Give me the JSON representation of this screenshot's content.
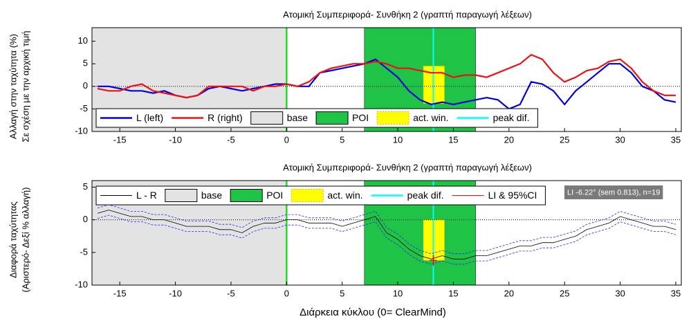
{
  "chart_data": [
    {
      "type": "line",
      "title": "Ατομική Συμπεριφορά- Συνθήκη 2 (γραπτή παραγωγή λέξεων)",
      "y_label": [
        "Αλλαγή στην ταχύτητα (%)",
        "Σε σχέση με την αρχική τιμή"
      ],
      "x": [
        -17,
        -16,
        -15,
        -14,
        -13,
        -12,
        -11,
        -10,
        -9,
        -8,
        -7,
        -6,
        -5,
        -4,
        -3,
        -2,
        -1,
        0,
        1,
        2,
        3,
        4,
        5,
        6,
        7,
        8,
        9,
        10,
        11,
        12,
        13,
        14,
        15,
        16,
        17,
        18,
        19,
        20,
        21,
        22,
        23,
        24,
        25,
        26,
        27,
        28,
        29,
        30,
        31,
        32,
        33,
        34,
        35
      ],
      "series": [
        {
          "name": "L (left)",
          "color": "#0000dd",
          "values": [
            0,
            0,
            -0.5,
            -1,
            -1,
            -1.5,
            -1,
            -2,
            -2.5,
            -2,
            -0.5,
            0,
            -0.5,
            -1,
            -0.5,
            0,
            0.5,
            0.5,
            0,
            0,
            3,
            3.5,
            4,
            4.5,
            5,
            6,
            4,
            2,
            -1,
            -3,
            -4,
            -3.5,
            -4,
            -3.5,
            -3,
            -2.5,
            -3,
            -5,
            -4,
            1,
            0.5,
            -1,
            -4,
            -1,
            1,
            3,
            5,
            5,
            3,
            0,
            -1,
            -3,
            -3.5
          ]
        },
        {
          "name": "R (right)",
          "color": "#ee1111",
          "values": [
            -0.5,
            -1,
            -1,
            0,
            0.5,
            -1,
            -1.5,
            -2,
            -2.5,
            -2,
            0,
            0,
            0,
            0,
            -1,
            0,
            0,
            0.5,
            0,
            1,
            3,
            4,
            4.5,
            5,
            5,
            5.5,
            5,
            4,
            4,
            3.5,
            3,
            3,
            2,
            2.5,
            2.5,
            2,
            3,
            4,
            5,
            7,
            6,
            3,
            1,
            2,
            3.5,
            4,
            5.5,
            6,
            4,
            1,
            -1,
            -2,
            -2
          ]
        }
      ],
      "shaded": [
        {
          "name": "base",
          "color": "#e3e3e3",
          "xlim": [
            -17.5,
            0
          ]
        },
        {
          "name": "POI",
          "color": "#1fc447",
          "xlim": [
            7,
            17
          ]
        },
        {
          "name": "act. win.",
          "color": "#ffff00",
          "xlim": [
            12.3,
            14.2
          ],
          "ylim": [
            -3.8,
            4.5
          ]
        }
      ],
      "onset_line": {
        "x": 0,
        "color": "#22dd22"
      },
      "vlines": [
        {
          "name": "peak dif.",
          "color": "#00ffff",
          "x": 13.2
        }
      ],
      "xlim": [
        -17.5,
        35.5
      ],
      "ylim": [
        -10,
        13
      ],
      "xticks": [
        -15,
        -10,
        -5,
        0,
        5,
        10,
        15,
        20,
        25,
        30,
        35
      ],
      "yticks": [
        -10,
        -5,
        0,
        5,
        10
      ]
    },
    {
      "type": "line",
      "title": "Ατομική Συμπεριφορά- Συνθήκη 2 (γραπτή παραγωγή λέξεων)",
      "y_label": [
        "Διαφορά ταχύτητας",
        "(Αριστερό- Δεξί % αλλαγή)"
      ],
      "x_label": "Διάρκεια κύκλου (0= ClearMind)",
      "x": [
        -17,
        -16,
        -15,
        -14,
        -13,
        -12,
        -11,
        -10,
        -9,
        -8,
        -7,
        -6,
        -5,
        -4,
        -3,
        -2,
        -1,
        0,
        1,
        2,
        3,
        4,
        5,
        6,
        7,
        8,
        9,
        10,
        11,
        12,
        13,
        14,
        15,
        16,
        17,
        18,
        19,
        20,
        21,
        22,
        23,
        24,
        25,
        26,
        27,
        28,
        29,
        30,
        31,
        32,
        33,
        34,
        35
      ],
      "series": [
        {
          "name": "L - R",
          "color": "#000000",
          "values": [
            1,
            1.5,
            1,
            0.5,
            0.5,
            0,
            0,
            -0.5,
            -1,
            -1,
            -1,
            -1.5,
            -1.5,
            -2,
            -1,
            -0.5,
            -0.5,
            0,
            0,
            -0.5,
            -0.5,
            -0.5,
            -1,
            -0.5,
            0,
            0.5,
            -2,
            -3,
            -4.5,
            -5.5,
            -6,
            -5.5,
            -6,
            -6,
            -5.5,
            -5.5,
            -5,
            -4.5,
            -4,
            -4,
            -3.5,
            -3.5,
            -3,
            -2.5,
            -1.5,
            -1,
            -0.5,
            0.5,
            0,
            -0.5,
            -1,
            -1,
            -1.5
          ]
        },
        {
          "color": "#2222ff",
          "dashed": true,
          "values": [
            1.8,
            2.3,
            1.8,
            1.3,
            1.3,
            0.8,
            0.8,
            0.3,
            -0.2,
            -0.2,
            -0.2,
            -0.7,
            -0.7,
            -1.2,
            -0.2,
            0.3,
            0.3,
            0.8,
            0.8,
            0.3,
            0.3,
            0.3,
            -0.2,
            0.3,
            0.8,
            1.3,
            -1.2,
            -2.2,
            -3.7,
            -4.7,
            -5.2,
            -4.7,
            -5.2,
            -5.2,
            -4.7,
            -4.7,
            -4.2,
            -3.7,
            -3.2,
            -3.2,
            -2.7,
            -2.7,
            -2.2,
            -1.7,
            -0.7,
            -0.2,
            0.3,
            1.3,
            0.8,
            0.3,
            -0.2,
            -0.2,
            -0.7
          ]
        },
        {
          "color": "#2222ff",
          "dashed": true,
          "values": [
            0.2,
            0.7,
            0.2,
            -0.3,
            -0.3,
            -0.8,
            -0.8,
            -1.3,
            -1.8,
            -1.8,
            -1.8,
            -2.3,
            -2.3,
            -2.8,
            -1.8,
            -1.3,
            -1.3,
            -0.8,
            -0.8,
            -1.3,
            -1.3,
            -1.3,
            -1.8,
            -1.3,
            -0.8,
            -0.3,
            -2.8,
            -3.8,
            -5.3,
            -6.3,
            -6.8,
            -6.3,
            -6.8,
            -6.8,
            -6.3,
            -6.3,
            -5.8,
            -5.3,
            -4.8,
            -4.8,
            -4.3,
            -4.3,
            -3.8,
            -3.3,
            -2.3,
            -1.8,
            -1.3,
            -0.3,
            -0.8,
            -1.3,
            -1.8,
            -1.8,
            -2.3
          ]
        }
      ],
      "shaded": [
        {
          "name": "base",
          "color": "#e3e3e3",
          "xlim": [
            -17.5,
            0
          ]
        },
        {
          "name": "POI",
          "color": "#1fc447",
          "xlim": [
            7,
            17
          ]
        },
        {
          "name": "act. win.",
          "color": "#ffff00",
          "xlim": [
            12.3,
            14.2
          ],
          "ylim": [
            -6.22,
            0
          ]
        }
      ],
      "onset_line": {
        "x": 0,
        "color": "#22dd22"
      },
      "vlines": [
        {
          "name": "peak dif.",
          "color": "#00ffff",
          "x": 13.2
        }
      ],
      "li": {
        "name": "LI & 95%CI",
        "color": "#ff0000",
        "x": 13.2,
        "value": -6.22,
        "ci": [
          -7.0,
          -5.4
        ]
      },
      "annotation": "LI -6.22° (sem 0.813), n=19",
      "xlim": [
        -17.5,
        35.5
      ],
      "ylim": [
        -10,
        6
      ],
      "xticks": [
        -15,
        -10,
        -5,
        0,
        5,
        10,
        15,
        20,
        25,
        30,
        35
      ],
      "yticks": [
        -10,
        -5,
        0,
        5
      ]
    }
  ]
}
